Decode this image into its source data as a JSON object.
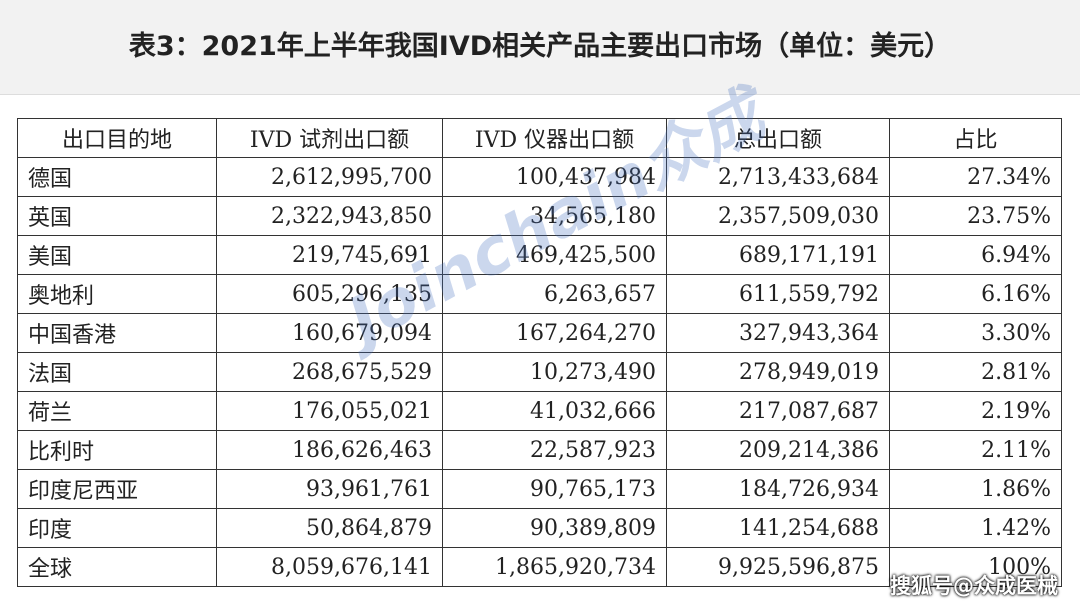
{
  "header": {
    "title": "表3：2021年上半年我国IVD相关产品主要出口市场（单位：美元）"
  },
  "table": {
    "columns": [
      "出口目的地",
      "IVD 试剂出口额",
      "IVD 仪器出口额",
      "总出口额",
      "占比"
    ],
    "rows": [
      [
        "德国",
        "2,612,995,700",
        "100,437,984",
        "2,713,433,684",
        "27.34%"
      ],
      [
        "英国",
        "2,322,943,850",
        "34,565,180",
        "2,357,509,030",
        "23.75%"
      ],
      [
        "美国",
        "219,745,691",
        "469,425,500",
        "689,171,191",
        "6.94%"
      ],
      [
        "奥地利",
        "605,296,135",
        "6,263,657",
        "611,559,792",
        "6.16%"
      ],
      [
        "中国香港",
        "160,679,094",
        "167,264,270",
        "327,943,364",
        "3.30%"
      ],
      [
        "法国",
        "268,675,529",
        "10,273,490",
        "278,949,019",
        "2.81%"
      ],
      [
        "荷兰",
        "176,055,021",
        "41,032,666",
        "217,087,687",
        "2.19%"
      ],
      [
        "比利时",
        "186,626,463",
        "22,587,923",
        "209,214,386",
        "2.11%"
      ],
      [
        "印度尼西亚",
        "93,961,761",
        "90,765,173",
        "184,726,934",
        "1.86%"
      ],
      [
        "印度",
        "50,864,879",
        "90,389,809",
        "141,254,688",
        "1.42%"
      ],
      [
        "全球",
        "8,059,676,141",
        "1,865,920,734",
        "9,925,596,875",
        "100%"
      ]
    ]
  },
  "watermarks": {
    "center": "Joinchain众成",
    "footer": "搜狐号@众成医械"
  }
}
